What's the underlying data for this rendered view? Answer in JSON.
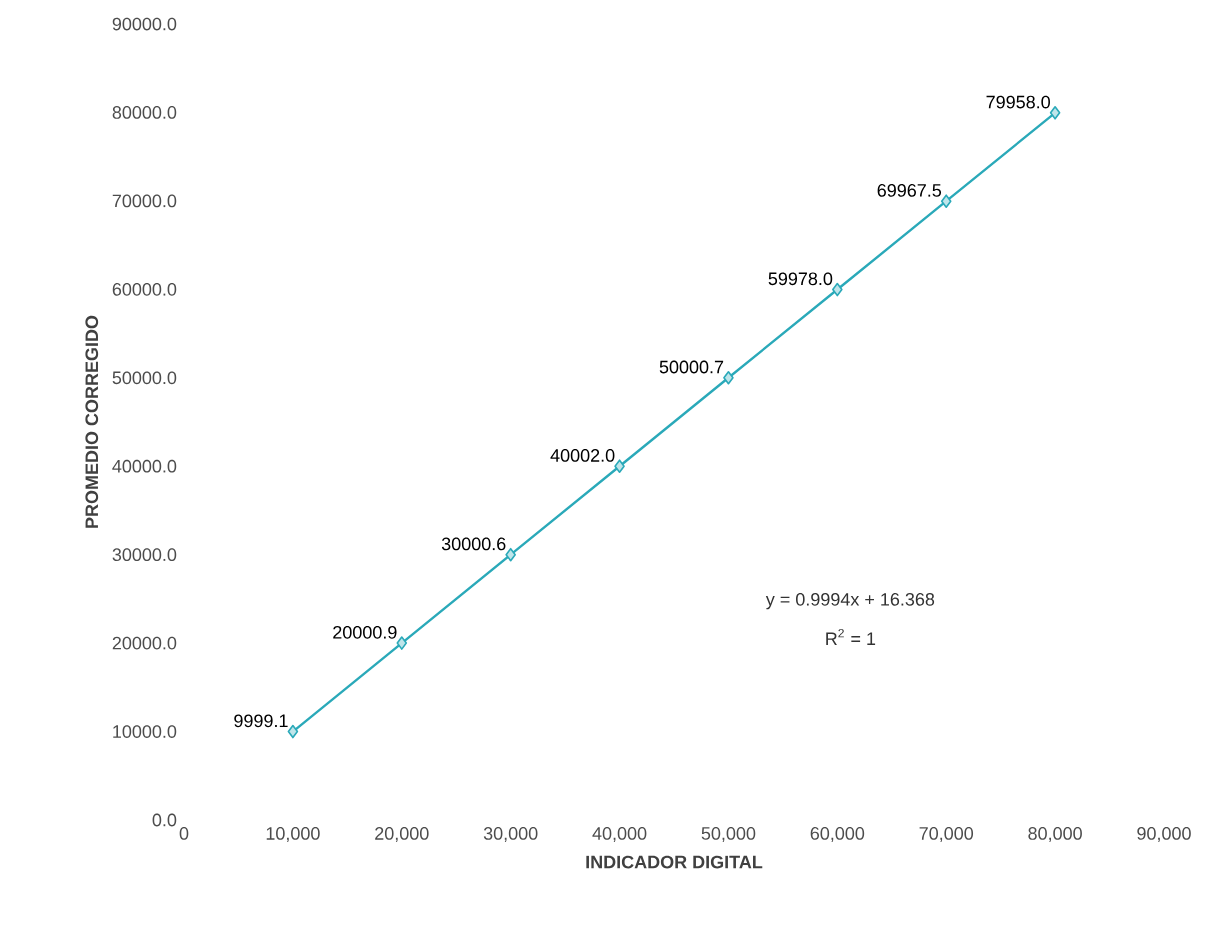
{
  "chart_data": {
    "type": "line",
    "xlabel": "INDICADOR DIGITAL",
    "ylabel": "PROMEDIO CORREGIDO",
    "x": [
      10000,
      20000,
      30000,
      40000,
      50000,
      60000,
      70000,
      80000
    ],
    "series": [
      {
        "color": "#2aa9b9",
        "values": [
          9999.1,
          20000.9,
          30000.6,
          40002.0,
          50000.7,
          59978.0,
          69967.5,
          79958.0
        ],
        "value_labels": [
          "9999.1",
          "20000.9",
          "30000.6",
          "40002.0",
          "50000.7",
          "59978.0",
          "69967.5",
          "79958.0"
        ]
      }
    ],
    "marker": "diamond",
    "line_style": "solid",
    "xlim": [
      0,
      90000
    ],
    "ylim": [
      0,
      90000
    ],
    "xticks": [
      0,
      {
        "value": 10000,
        "label": "10,000"
      },
      {
        "value": 20000,
        "label": "20,000"
      },
      {
        "value": 30000,
        "label": "30,000"
      },
      {
        "value": 40000,
        "label": "40,000"
      },
      {
        "value": 50000,
        "label": "50,000"
      },
      {
        "value": 60000,
        "label": "60,000"
      },
      {
        "value": 70000,
        "label": "70,000"
      },
      {
        "value": 80000,
        "label": "80,000"
      },
      {
        "value": 90000,
        "label": "90,000"
      }
    ],
    "yticks": [
      {
        "value": 0,
        "label": "0.0"
      },
      {
        "value": 10000,
        "label": "10000.0"
      },
      {
        "value": 20000,
        "label": "20000.0"
      },
      {
        "value": 30000,
        "label": "30000.0"
      },
      {
        "value": 40000,
        "label": "40000.0"
      },
      {
        "value": 50000,
        "label": "50000.0"
      },
      {
        "value": 60000,
        "label": "60000.0"
      },
      {
        "value": 70000,
        "label": "70000.0"
      },
      {
        "value": 80000,
        "label": "80000.0"
      },
      {
        "value": 90000,
        "label": "90000.0"
      }
    ],
    "annotations": [
      "y = 0.9994x + 16.368",
      "R$^{2}$ = 1"
    ]
  }
}
